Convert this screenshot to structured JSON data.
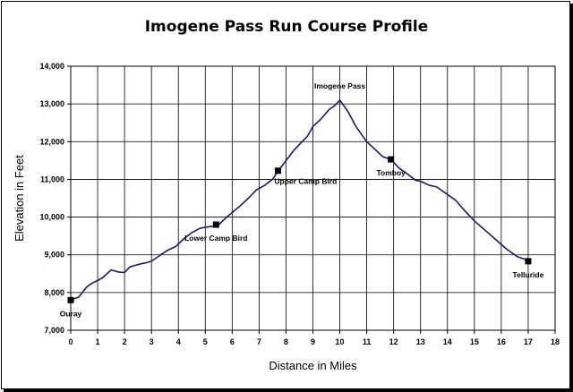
{
  "chart_data": {
    "type": "line",
    "title": "Imogene Pass Run Course Profile",
    "xlabel": "Distance in Miles",
    "ylabel": "Elevation in Feet",
    "xlim": [
      0,
      18
    ],
    "ylim": [
      7000,
      14000
    ],
    "xticks": [
      "0",
      "1",
      "2",
      "3",
      "4",
      "5",
      "6",
      "7",
      "8",
      "9",
      "10",
      "11",
      "12",
      "13",
      "14",
      "15",
      "16",
      "17",
      "18"
    ],
    "yticks": [
      "7,000",
      "8,000",
      "9,000",
      "10,000",
      "11,000",
      "12,000",
      "13,000",
      "14,000"
    ],
    "ytick_values": [
      7000,
      8000,
      9000,
      10000,
      11000,
      12000,
      13000,
      14000
    ],
    "grid": true,
    "line_color": "#1a1a6e",
    "series": [
      {
        "x": [
          0,
          0.3,
          0.6,
          0.8,
          1.0,
          1.2,
          1.5,
          1.7,
          1.8,
          2.0,
          2.2,
          2.4,
          2.6,
          2.8,
          3.0,
          3.3,
          3.6,
          3.9,
          4.2,
          4.5,
          4.8,
          5.0,
          5.3,
          5.5,
          5.8,
          6.0,
          6.3,
          6.6,
          6.9,
          7.2,
          7.5,
          7.7,
          8.0,
          8.3,
          8.6,
          8.8,
          9.0,
          9.3,
          9.6,
          9.8,
          10.0,
          10.3,
          10.6,
          10.8,
          11.0,
          11.3,
          11.6,
          11.9,
          12.2,
          12.5,
          12.8,
          13.0,
          13.3,
          13.6,
          13.8,
          14.0,
          14.3,
          14.6,
          15.0,
          15.4,
          15.8,
          16.2,
          16.6,
          17.0,
          17.1
        ],
        "y": [
          7800,
          7880,
          8150,
          8250,
          8320,
          8400,
          8600,
          8560,
          8540,
          8530,
          8680,
          8720,
          8760,
          8790,
          8830,
          8980,
          9120,
          9220,
          9420,
          9590,
          9700,
          9730,
          9760,
          9800,
          10000,
          10120,
          10300,
          10500,
          10720,
          10840,
          11000,
          11210,
          11500,
          11780,
          12000,
          12150,
          12400,
          12600,
          12850,
          12950,
          13100,
          12800,
          12400,
          12200,
          12000,
          11800,
          11600,
          11530,
          11300,
          11150,
          10980,
          10950,
          10850,
          10800,
          10700,
          10600,
          10450,
          10200,
          9900,
          9650,
          9400,
          9150,
          8950,
          8850,
          8830
        ]
      }
    ],
    "annotations": [
      {
        "label": "Ouray",
        "x": 0,
        "y": 7800,
        "marker": true,
        "position": "below"
      },
      {
        "label": "Lower Camp Bird",
        "x": 5.4,
        "y": 9800,
        "marker": true,
        "position": "below"
      },
      {
        "label": "Upper Camp Bird",
        "x": 7.7,
        "y": 11230,
        "marker": true,
        "position": "below-right"
      },
      {
        "label": "Imogene Pass",
        "x": 10.0,
        "y": 13100,
        "marker": false,
        "position": "above"
      },
      {
        "label": "Tomboy",
        "x": 11.9,
        "y": 11530,
        "marker": true,
        "position": "below"
      },
      {
        "label": "Telluride",
        "x": 17.0,
        "y": 8830,
        "marker": true,
        "position": "below"
      }
    ]
  }
}
